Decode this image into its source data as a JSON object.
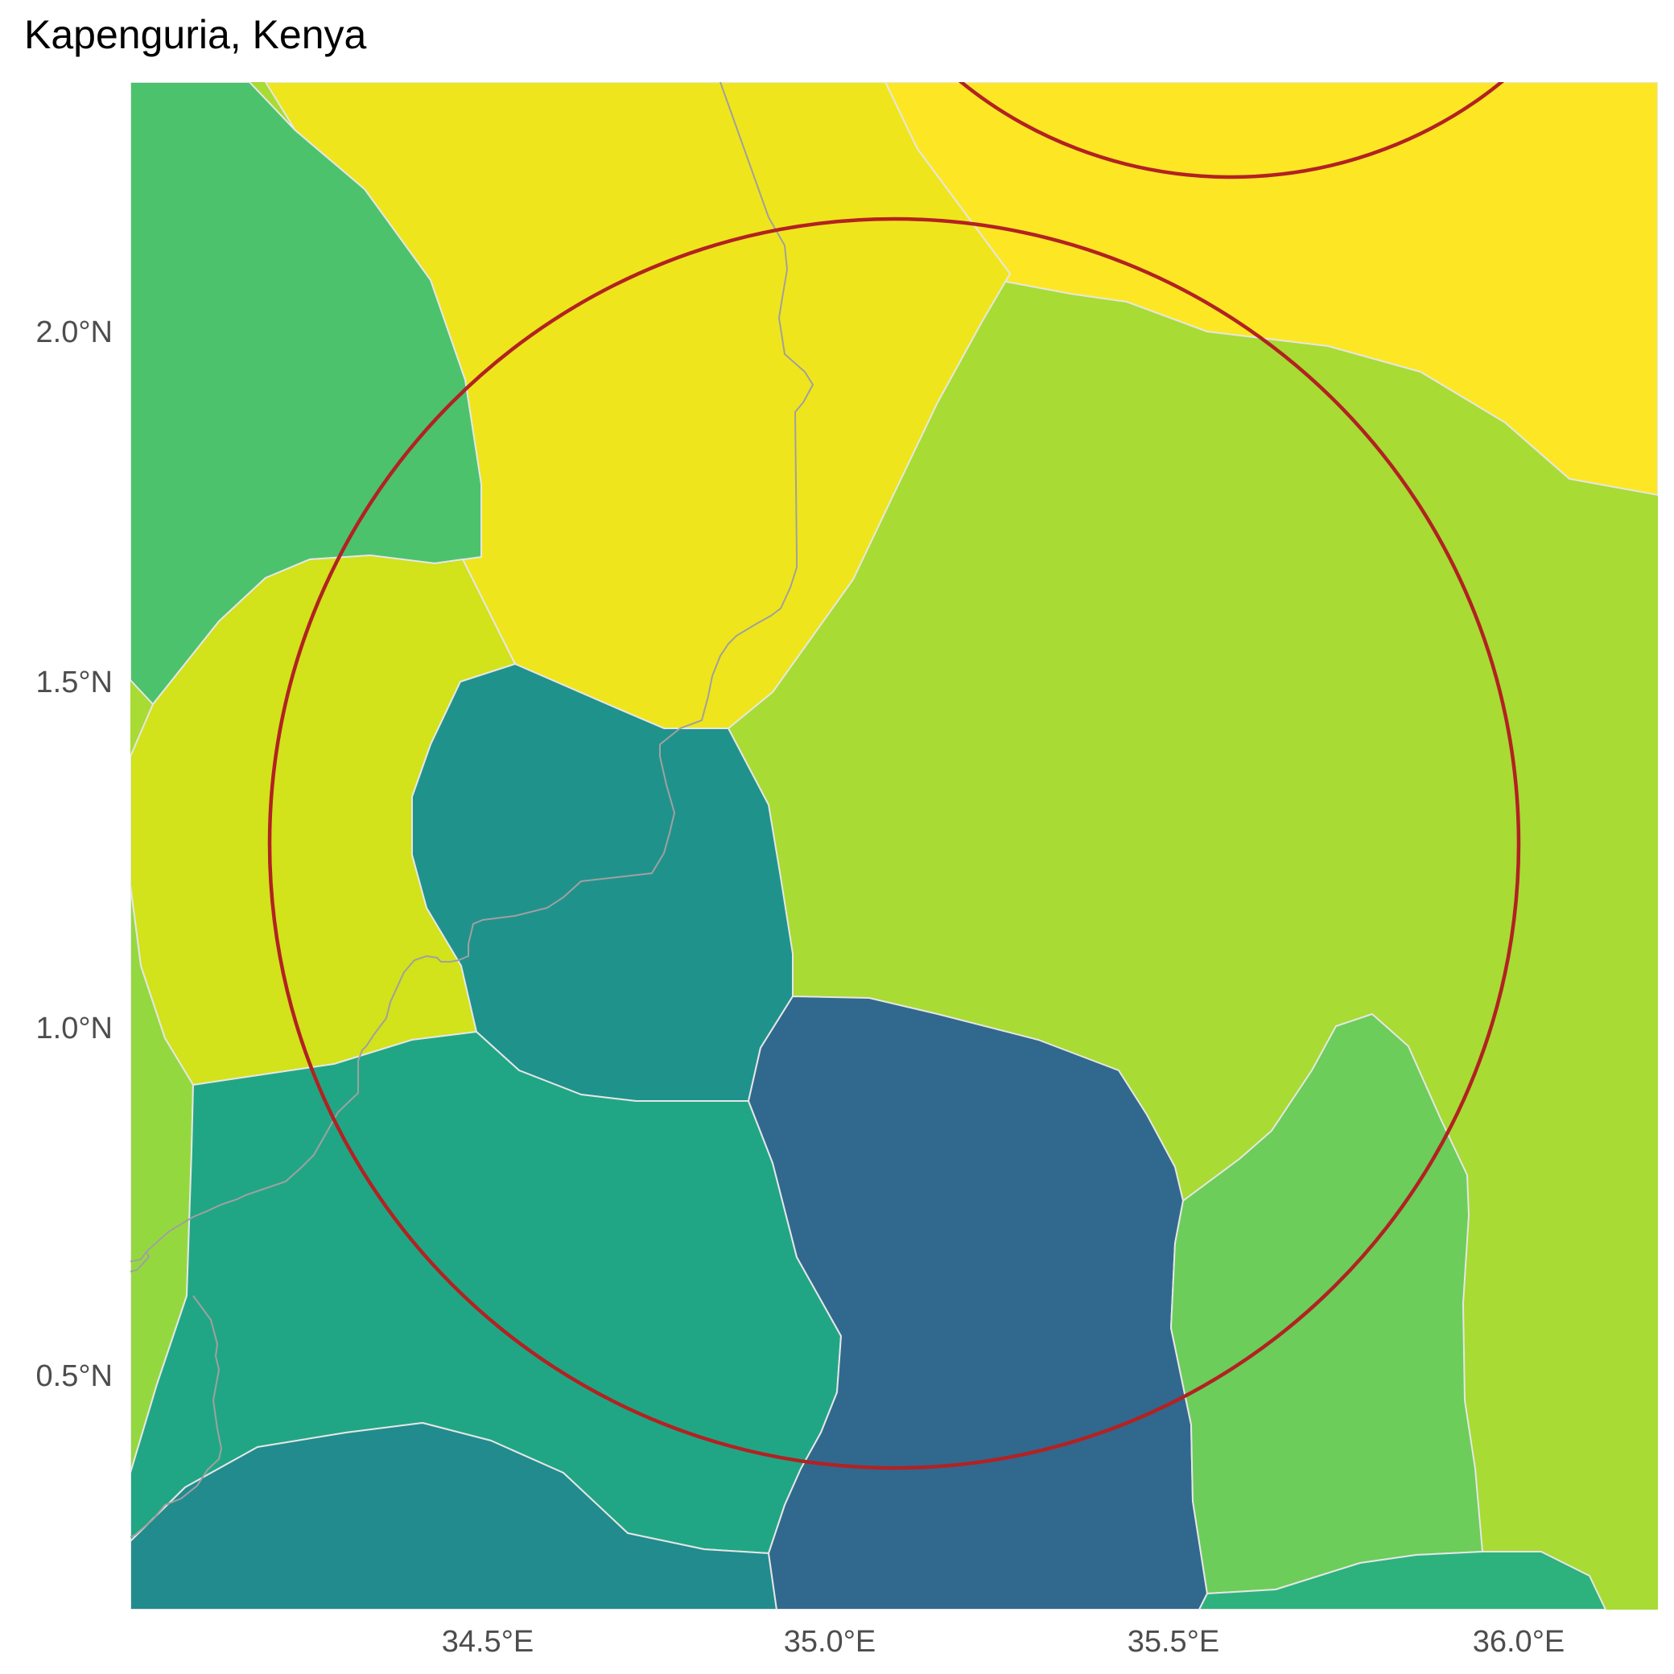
{
  "map": {
    "title": "Kapenguria, Kenya",
    "y_axis_labels": [
      "2.0°N",
      "1.5°N",
      "1.0°N",
      "0.5°N"
    ],
    "x_axis_labels": [
      "34.5°E",
      "35.0°E",
      "35.5°E",
      "36.0°E"
    ],
    "circle_color": "#b22222",
    "palette": [
      "#fde725",
      "#efe51c",
      "#d2e21b",
      "#a8db34",
      "#94d840",
      "#6ccd5a",
      "#4cc26c",
      "#2db27d",
      "#21a685",
      "#228b8d",
      "#20928c",
      "#31688e"
    ]
  }
}
